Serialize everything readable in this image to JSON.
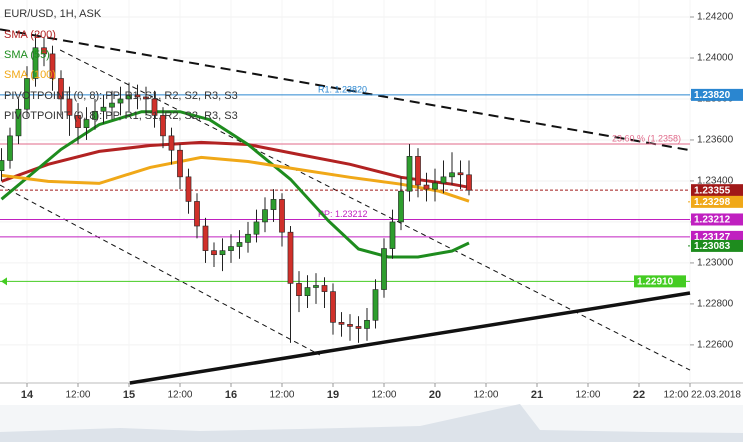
{
  "chart_data": {
    "type": "candlestick",
    "title": "EUR/USD, 1H, ASK",
    "indicator_labels": [
      "PIVOTPOINT (0, 8): PP, R1, S1, R2, S2, R3, S3",
      "PIVOTPOINT (0, 8): PP, R1, S1, R2, S2, R3, S3"
    ],
    "up_color": "#2e9e2e",
    "down_color": "#d0302a",
    "x": [
      -6,
      -4,
      -2,
      0,
      2,
      4,
      6,
      8,
      10,
      12,
      14,
      16,
      18,
      20,
      22,
      24,
      26,
      28,
      30,
      32,
      34,
      36,
      38,
      40,
      42,
      44,
      46,
      48,
      50,
      52,
      54,
      56,
      58,
      60,
      62,
      64,
      66,
      68,
      70,
      72,
      74,
      76,
      78,
      80,
      82,
      84,
      86,
      88,
      90,
      92,
      94,
      96,
      98,
      100,
      102,
      104
    ],
    "open": [
      1.2345,
      1.235,
      1.2362,
      1.2375,
      1.239,
      1.2405,
      1.2402,
      1.239,
      1.238,
      1.2372,
      1.2366,
      1.237,
      1.2374,
      1.2376,
      1.2378,
      1.238,
      1.2382,
      1.2381,
      1.238,
      1.2372,
      1.2362,
      1.2355,
      1.2342,
      1.233,
      1.2318,
      1.2306,
      1.2304,
      1.2306,
      1.2308,
      1.231,
      1.2314,
      1.232,
      1.2326,
      1.2331,
      1.2315,
      1.229,
      1.2284,
      1.2288,
      1.2289,
      1.2286,
      1.2271,
      1.227,
      1.2269,
      1.2268,
      1.2272,
      1.2287,
      1.2307,
      1.232,
      1.2335,
      1.2352,
      1.2338,
      1.2336,
      1.2339,
      1.2342,
      1.2344,
      1.2343
    ],
    "high": [
      1.2356,
      1.2366,
      1.238,
      1.2396,
      1.2412,
      1.241,
      1.2406,
      1.2394,
      1.2386,
      1.2378,
      1.2376,
      1.238,
      1.2382,
      1.2384,
      1.2386,
      1.2388,
      1.2387,
      1.2386,
      1.2384,
      1.2376,
      1.2366,
      1.2358,
      1.2346,
      1.2334,
      1.2322,
      1.231,
      1.2312,
      1.2314,
      1.2316,
      1.232,
      1.2326,
      1.2332,
      1.2336,
      1.2334,
      1.2318,
      1.2296,
      1.2294,
      1.2295,
      1.2293,
      1.229,
      1.2276,
      1.2275,
      1.2274,
      1.2278,
      1.2292,
      1.2312,
      1.2326,
      1.2342,
      1.2358,
      1.2356,
      1.2344,
      1.2346,
      1.235,
      1.2354,
      1.235,
      1.235
    ],
    "low": [
      1.234,
      1.2346,
      1.2358,
      1.2371,
      1.2386,
      1.2396,
      1.2384,
      1.2372,
      1.2362,
      1.2358,
      1.236,
      1.2365,
      1.2368,
      1.237,
      1.2372,
      1.2374,
      1.2375,
      1.2372,
      1.2366,
      1.2356,
      1.2348,
      1.2336,
      1.2324,
      1.2312,
      1.23,
      1.2298,
      1.2296,
      1.23,
      1.2302,
      1.2305,
      1.231,
      1.2315,
      1.232,
      1.2308,
      1.2261,
      1.2276,
      1.2278,
      1.228,
      1.2278,
      1.2265,
      1.2264,
      1.2262,
      1.2261,
      1.2262,
      1.2268,
      1.2283,
      1.2302,
      1.2316,
      1.233,
      1.2332,
      1.233,
      1.233,
      1.2334,
      1.2338,
      1.2336,
      1.2333
    ],
    "close": [
      1.235,
      1.2362,
      1.2375,
      1.239,
      1.2405,
      1.2402,
      1.239,
      1.238,
      1.2372,
      1.2366,
      1.237,
      1.2374,
      1.2376,
      1.2378,
      1.238,
      1.2382,
      1.2381,
      1.238,
      1.2372,
      1.2362,
      1.2355,
      1.2342,
      1.233,
      1.2318,
      1.2306,
      1.2304,
      1.2306,
      1.2308,
      1.231,
      1.2314,
      1.232,
      1.2326,
      1.2331,
      1.2315,
      1.229,
      1.2284,
      1.2288,
      1.2289,
      1.2286,
      1.2271,
      1.227,
      1.2269,
      1.2268,
      1.2272,
      1.2287,
      1.2307,
      1.232,
      1.2335,
      1.2352,
      1.2338,
      1.2336,
      1.2339,
      1.2342,
      1.2344,
      1.2343,
      1.23355
    ],
    "series": [
      {
        "name": "SMA (200)",
        "color": "#b22222",
        "x": [
          -6,
          5,
          17,
          29,
          41,
          52,
          64,
          76,
          88,
          100,
          104
        ],
        "values": [
          1.23398,
          1.23481,
          1.23544,
          1.23573,
          1.23588,
          1.23578,
          1.23529,
          1.23481,
          1.23418,
          1.23384,
          1.23369
        ]
      },
      {
        "name": "SMA (55)",
        "color": "#1e8c1e",
        "x": [
          -6,
          1,
          8,
          17,
          27,
          36,
          43,
          52,
          62,
          71,
          78,
          85,
          92,
          100,
          104
        ],
        "values": [
          1.23311,
          1.23432,
          1.23554,
          1.23675,
          1.23738,
          1.23738,
          1.23699,
          1.23578,
          1.23408,
          1.23204,
          1.23068,
          1.23029,
          1.23029,
          1.23058,
          1.23097
        ]
      },
      {
        "name": "SMA (100)",
        "color": "#f0a818",
        "x": [
          -6,
          5,
          17,
          29,
          41,
          52,
          64,
          76,
          88,
          97,
          104
        ],
        "values": [
          1.23427,
          1.23398,
          1.23388,
          1.23466,
          1.23515,
          1.23495,
          1.23456,
          1.23418,
          1.23384,
          1.2335,
          1.23301
        ]
      }
    ],
    "levels": [
      {
        "value": 1.2382,
        "label": "1.23820",
        "tag": "R1: 1.23820",
        "color": "#2a86d0"
      },
      {
        "value": 1.2358,
        "tag": "23.60 % (1.2358)",
        "color": "#e06a8a"
      },
      {
        "value": 1.23355,
        "label": "1.23355",
        "color": "#a01818",
        "style": "dashed"
      },
      {
        "value": 1.23212,
        "label": "1.23212",
        "tag": "PP: 1.23212",
        "color": "#c020c0"
      },
      {
        "value": 1.23127,
        "label": "1.23127",
        "color": "#c020c0"
      },
      {
        "value": 1.2291,
        "label": "1.22910",
        "color": "#44cc22",
        "inside": true
      }
    ],
    "axis_labels": [
      {
        "value": 1.23298,
        "label": "1.23298",
        "color": "#f0a818"
      },
      {
        "value": 1.23083,
        "label": "1.23083",
        "color": "#1e8c1e"
      }
    ],
    "trendlines": [
      {
        "x": [
          -6.35,
          156
        ],
        "values": [
          1.2414,
          1.2355
        ],
        "style": "dashed",
        "width": 2
      },
      {
        "x": [
          7.8,
          156
        ],
        "values": [
          1.24039,
          1.22477
        ],
        "style": "dashed",
        "width": 1
      },
      {
        "x": [
          -6.35,
          68.9
        ],
        "values": [
          1.2338,
          1.22551
        ],
        "style": "dashed",
        "width": 1
      },
      {
        "x": [
          24.2,
          156
        ],
        "values": [
          1.22414,
          1.22853
        ],
        "style": "solid",
        "width": 3.5
      }
    ],
    "xlim": [
      -6.35,
      156
    ],
    "xticks": [
      {
        "value": 0,
        "label": "14"
      },
      {
        "value": 12,
        "label": "12:00"
      },
      {
        "value": 24,
        "label": "15"
      },
      {
        "value": 36,
        "label": "12:00"
      },
      {
        "value": 48,
        "label": "16"
      },
      {
        "value": 60,
        "label": "12:00"
      },
      {
        "value": 72,
        "label": "19"
      },
      {
        "value": 84,
        "label": "12:00"
      },
      {
        "value": 96,
        "label": "20"
      },
      {
        "value": 108,
        "label": "12:00"
      },
      {
        "value": 120,
        "label": "21"
      },
      {
        "value": 132,
        "label": "12:00"
      },
      {
        "value": 144,
        "label": "22"
      },
      {
        "value": 156,
        "label": "12:00"
      }
    ],
    "date_label": "22.03.2018",
    "ylim": [
      1.22414,
      1.24283
    ],
    "yticks": [
      {
        "value": 1.242,
        "label": "1.24200"
      },
      {
        "value": 1.24,
        "label": "1.24000"
      },
      {
        "value": 1.238,
        "label": "1.23800"
      },
      {
        "value": 1.236,
        "label": "1.23600"
      },
      {
        "value": 1.234,
        "label": "1.23400"
      },
      {
        "value": 1.232,
        "label": "1.23200"
      },
      {
        "value": 1.23,
        "label": "1.23000"
      },
      {
        "value": 1.228,
        "label": "1.22800"
      },
      {
        "value": 1.226,
        "label": "1.22600"
      }
    ],
    "grid": true
  }
}
